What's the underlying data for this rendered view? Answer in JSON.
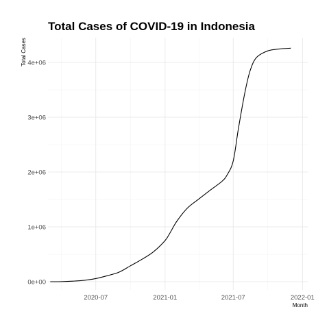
{
  "chart_data": {
    "type": "line",
    "title": "Total Cases of COVID-19 in Indonesia",
    "xlabel": "Month",
    "ylabel": "Total Cases",
    "x_type": "date",
    "xlim": [
      "2020-02-25",
      "2022-01-15"
    ],
    "ylim": [
      -150000,
      4450000
    ],
    "x_ticks": [
      {
        "value": "2020-07-01",
        "label": "2020-07"
      },
      {
        "value": "2021-01-01",
        "label": "2021-01"
      },
      {
        "value": "2021-07-01",
        "label": "2021-07"
      },
      {
        "value": "2022-01-01",
        "label": "2022-01"
      }
    ],
    "x_minor_ticks": [
      "2020-04-01",
      "2020-10-01",
      "2021-04-01",
      "2021-10-01"
    ],
    "y_ticks": [
      {
        "value": 0,
        "label": "0e+00"
      },
      {
        "value": 1000000,
        "label": "1e+06"
      },
      {
        "value": 2000000,
        "label": "2e+06"
      },
      {
        "value": 3000000,
        "label": "3e+06"
      },
      {
        "value": 4000000,
        "label": "4e+06"
      }
    ],
    "y_minor_ticks": [
      500000,
      1500000,
      2500000,
      3500000
    ],
    "grid": true,
    "legend": "none",
    "series": [
      {
        "color": "#000000",
        "x": [
          "2020-03-02",
          "2020-04-01",
          "2020-05-01",
          "2020-06-01",
          "2020-07-01",
          "2020-08-01",
          "2020-09-01",
          "2020-10-01",
          "2020-11-01",
          "2020-12-01",
          "2021-01-01",
          "2021-01-15",
          "2021-02-01",
          "2021-03-01",
          "2021-04-01",
          "2021-05-01",
          "2021-06-01",
          "2021-06-15",
          "2021-07-01",
          "2021-07-15",
          "2021-08-01",
          "2021-08-15",
          "2021-09-01",
          "2021-10-01",
          "2021-11-01",
          "2021-12-01"
        ],
        "y": [
          2,
          1500,
          10000,
          26000,
          57000,
          110000,
          175000,
          290000,
          410000,
          545000,
          750000,
          900000,
          1100000,
          1340000,
          1510000,
          1670000,
          1830000,
          1950000,
          2200000,
          2800000,
          3450000,
          3850000,
          4090000,
          4210000,
          4245000,
          4258000
        ]
      }
    ]
  }
}
